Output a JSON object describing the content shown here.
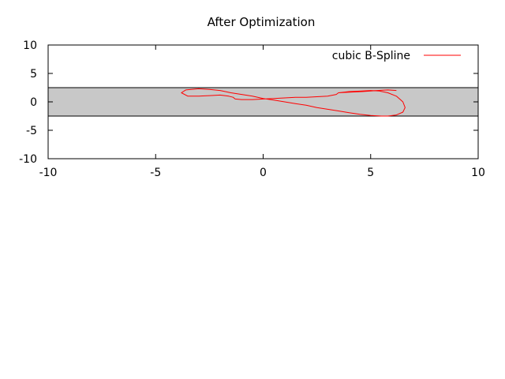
{
  "chart_data": {
    "type": "line",
    "title": "After Optimization",
    "xlabel": "",
    "ylabel": "",
    "xlim": [
      -10,
      10
    ],
    "ylim": [
      -10,
      10
    ],
    "xticks": [
      "-10",
      "-5",
      "0",
      "5",
      "10"
    ],
    "yticks": [
      "10",
      "5",
      "0",
      "-5",
      "-10"
    ],
    "grid": false,
    "legend": "top-right",
    "band": {
      "y_min": -2.5,
      "y_max": 2.5,
      "color": "#c8c8c8"
    },
    "series": [
      {
        "name": "cubic B-Spline",
        "color": "#ff0000",
        "x": [
          6.2,
          5.8,
          5.3,
          5.0,
          4.6,
          4.0,
          3.5,
          3.4,
          3.0,
          2.5,
          2.0,
          1.5,
          1.0,
          0.5,
          0.0,
          -0.5,
          -1.0,
          -1.3,
          -1.4,
          -1.6,
          -2.0,
          -2.5,
          -3.0,
          -3.5,
          -3.8,
          -3.6,
          -3.0,
          -2.5,
          -2.0,
          -1.5,
          -1.0,
          -0.5,
          0.0,
          0.5,
          1.0,
          1.5,
          2.0,
          2.5,
          3.0,
          3.5,
          4.0,
          4.5,
          5.0,
          5.5,
          5.8,
          6.2,
          6.5,
          6.6,
          6.5,
          6.2,
          5.8,
          5.4,
          5.0,
          4.6,
          4.0,
          3.5
        ],
        "y": [
          2.0,
          2.1,
          2.0,
          1.9,
          1.8,
          1.7,
          1.6,
          1.3,
          1.0,
          0.9,
          0.8,
          0.8,
          0.7,
          0.6,
          0.5,
          0.4,
          0.4,
          0.5,
          0.8,
          1.0,
          1.2,
          1.1,
          1.0,
          1.0,
          1.6,
          2.1,
          2.3,
          2.2,
          2.0,
          1.6,
          1.3,
          1.0,
          0.6,
          0.3,
          0.0,
          -0.3,
          -0.6,
          -1.0,
          -1.3,
          -1.6,
          -1.9,
          -2.2,
          -2.4,
          -2.5,
          -2.5,
          -2.3,
          -1.8,
          -1.0,
          0.0,
          1.0,
          1.6,
          1.9,
          2.0,
          1.9,
          1.8,
          1.6
        ]
      }
    ]
  }
}
